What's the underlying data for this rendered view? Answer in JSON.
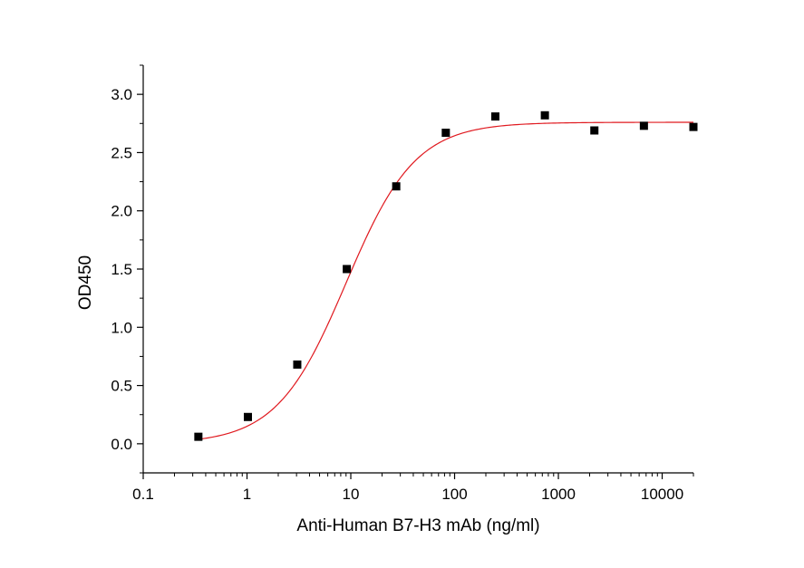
{
  "chart_data": {
    "type": "scatter",
    "title": "",
    "xlabel": "Anti-Human B7-H3 mAb (ng/ml)",
    "ylabel": "OD450",
    "x_scale": "log",
    "xlim": [
      0.1,
      20000
    ],
    "ylim": [
      -0.25,
      3.25
    ],
    "x_ticks": [
      0.1,
      1,
      10,
      100,
      1000,
      10000
    ],
    "x_tick_labels": [
      "0.1",
      "1",
      "10",
      "100",
      "1000",
      "10000"
    ],
    "y_ticks": [
      0.0,
      0.5,
      1.0,
      1.5,
      2.0,
      2.5,
      3.0
    ],
    "y_tick_labels": [
      "0.0",
      "0.5",
      "1.0",
      "1.5",
      "2.0",
      "2.5",
      "3.0"
    ],
    "grid": false,
    "legend": "none",
    "series": [
      {
        "marker": "square",
        "color": "#000000",
        "x": [
          0.34,
          1.02,
          3.05,
          9.15,
          27.4,
          82.3,
          247,
          741,
          2222,
          6667,
          20000
        ],
        "y": [
          0.06,
          0.23,
          0.68,
          1.5,
          2.21,
          2.67,
          2.81,
          2.82,
          2.69,
          2.73,
          2.72
        ]
      }
    ],
    "fit_curve": {
      "model": "4PL",
      "color": "#e0191f",
      "bottom": 0.0,
      "top": 2.76,
      "ec50": 9.0,
      "hill": 1.3,
      "x_range": [
        0.34,
        20000
      ]
    }
  }
}
